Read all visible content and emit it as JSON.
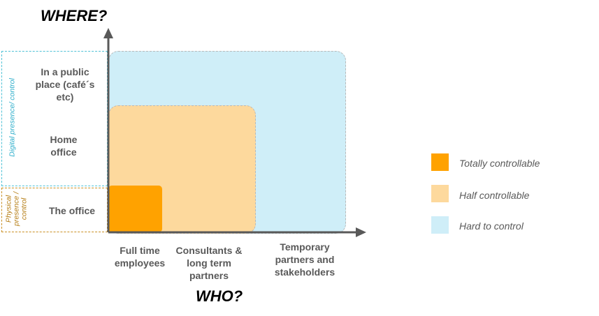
{
  "titles": {
    "where": "WHERE?",
    "who": "WHO?"
  },
  "y_categories": [
    {
      "label": "In a public place (café´s etc)"
    },
    {
      "label": "Home office"
    },
    {
      "label": "The office"
    }
  ],
  "x_categories": [
    {
      "label": "Full time employees"
    },
    {
      "label": "Consultants & long term partners"
    },
    {
      "label": "Temporary partners and stakeholders"
    }
  ],
  "brackets": {
    "digital": "Digital presence/ control",
    "physical": "Physical presence / control"
  },
  "legend": [
    {
      "label": "Totally controllable",
      "color": "#ffa200"
    },
    {
      "label": "Half controllable",
      "color": "#fdd99d"
    },
    {
      "label": "Hard to control",
      "color": "#cfeef8"
    }
  ],
  "colors": {
    "axis": "#595959",
    "digital_bracket": "#4fc2d6",
    "physical_bracket": "#c98f22"
  }
}
